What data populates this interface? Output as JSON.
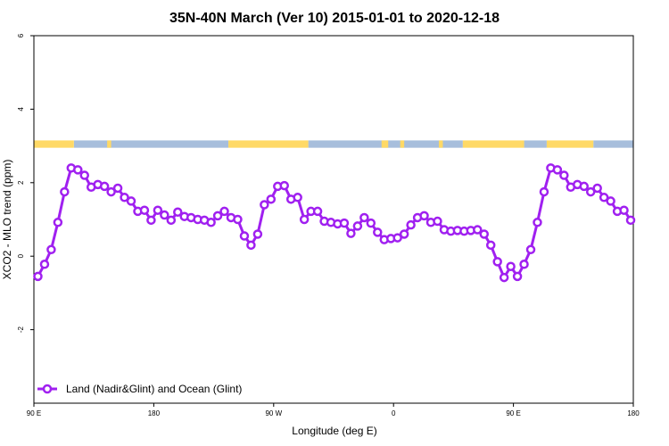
{
  "chart_data": {
    "type": "line",
    "title": "35N-40N March (Ver 10)   2015-01-01 to 2020-12-18",
    "xlabel": "Longitude (deg E)",
    "ylabel": "XCO2 - MLO trend (ppm)",
    "xlim": [
      90,
      540
    ],
    "ylim": [
      -4,
      6
    ],
    "x_ticks": [
      {
        "value": 90,
        "label": "90 E"
      },
      {
        "value": 180,
        "label": "180"
      },
      {
        "value": 270,
        "label": "90 W"
      },
      {
        "value": 360,
        "label": "0"
      },
      {
        "value": 450,
        "label": "90 E"
      },
      {
        "value": 540,
        "label": "180"
      }
    ],
    "y_ticks": [
      {
        "value": -2,
        "label": "-2"
      },
      {
        "value": 0,
        "label": "0"
      },
      {
        "value": 2,
        "label": "2"
      },
      {
        "value": 4,
        "label": "4"
      },
      {
        "value": 6,
        "label": "6"
      }
    ],
    "grid": false,
    "legend_position": "bottom-left",
    "series": [
      {
        "name": "Land (Nadir&Glint) and Ocean (Glint)",
        "color": "#a020f0",
        "x": [
          93,
          98,
          103,
          108,
          113,
          118,
          123,
          128,
          133,
          138,
          143,
          148,
          153,
          158,
          163,
          168,
          173,
          178,
          183,
          188,
          193,
          198,
          203,
          208,
          213,
          218,
          223,
          228,
          233,
          238,
          243,
          248,
          253,
          258,
          263,
          268,
          273,
          278,
          283,
          288,
          293,
          298,
          303,
          308,
          313,
          318,
          323,
          328,
          333,
          338,
          343,
          348,
          353,
          358,
          363,
          368,
          373,
          378,
          383,
          388,
          393,
          398,
          403,
          408,
          413,
          418,
          423,
          428,
          433,
          438,
          443,
          448,
          453,
          458,
          463,
          468,
          473,
          478,
          483,
          488,
          493,
          498,
          503,
          508,
          513,
          518,
          523,
          528,
          533,
          538
        ],
        "y": [
          -0.55,
          -0.22,
          0.18,
          0.92,
          1.75,
          2.4,
          2.35,
          2.2,
          1.88,
          1.95,
          1.9,
          1.75,
          1.85,
          1.6,
          1.5,
          1.22,
          1.25,
          0.98,
          1.25,
          1.12,
          0.98,
          1.2,
          1.08,
          1.05,
          1.0,
          0.98,
          0.92,
          1.1,
          1.22,
          1.05,
          1.0,
          0.55,
          0.3,
          0.6,
          1.4,
          1.55,
          1.9,
          1.92,
          1.55,
          1.6,
          1.0,
          1.22,
          1.22,
          0.95,
          0.92,
          0.88,
          0.9,
          0.62,
          0.82,
          1.05,
          0.9,
          0.65,
          0.45,
          0.48,
          0.5,
          0.6,
          0.85,
          1.05,
          1.1,
          0.92,
          0.95,
          0.72,
          0.68,
          0.7,
          0.68,
          0.7,
          0.72,
          0.6,
          0.3,
          -0.15,
          -0.58,
          -0.28,
          -0.55,
          -0.22,
          0.18,
          0.92,
          1.75,
          2.4,
          2.35,
          2.2,
          1.88,
          1.95,
          1.9,
          1.75,
          1.85,
          1.6,
          1.5,
          1.22,
          1.25,
          0.98
        ]
      }
    ],
    "land_ocean_band": {
      "y_range": [
        2.95,
        3.15
      ],
      "land_color": "#ffd966",
      "ocean_color": "#a7bedc",
      "land_x_ranges": [
        [
          90,
          120
        ],
        [
          145,
          148
        ],
        [
          236,
          296
        ],
        [
          351,
          356
        ],
        [
          365,
          368
        ],
        [
          394,
          397
        ],
        [
          412,
          458
        ],
        [
          475,
          510
        ]
      ],
      "ocean_x_ranges": [
        [
          120,
          236
        ],
        [
          296,
          412
        ],
        [
          458,
          475
        ],
        [
          510,
          540
        ]
      ]
    }
  }
}
